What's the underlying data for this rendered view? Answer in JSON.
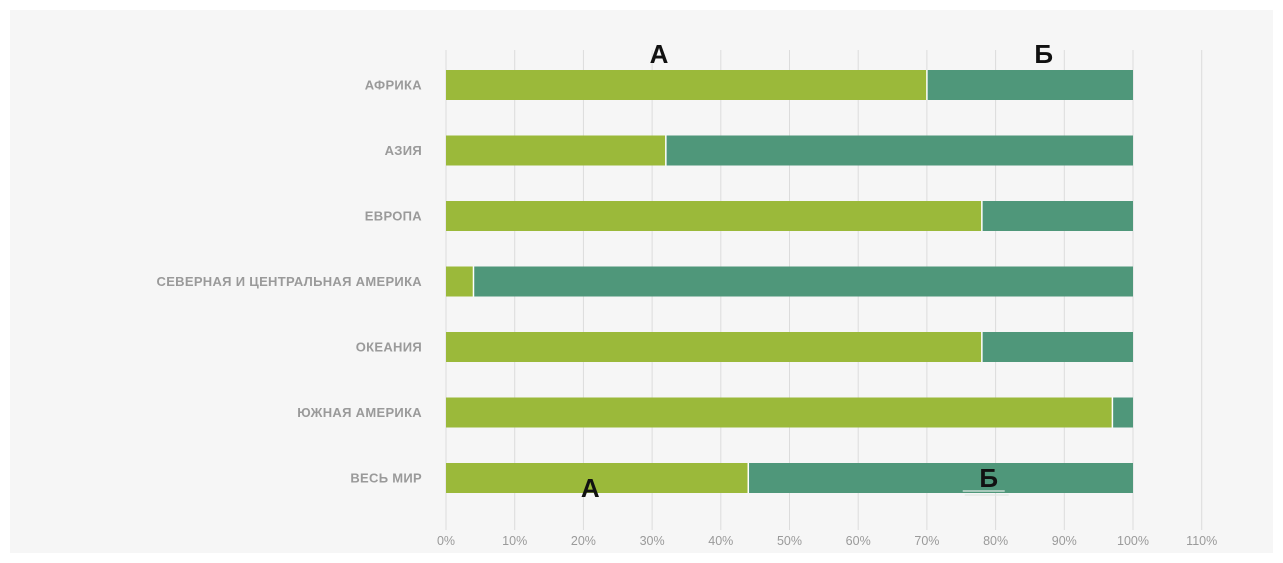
{
  "colors": {
    "background": "#f6f6f6",
    "grid": "#dcdcdc",
    "series_a": "#9bb93a",
    "series_b": "#4f977a",
    "label": "#9a9a9a",
    "annotation": "#111111"
  },
  "chart_data": {
    "type": "bar",
    "orientation": "horizontal",
    "stacked": true,
    "title": "",
    "xlabel": "",
    "ylabel": "",
    "xlim": [
      0,
      110
    ],
    "grid": true,
    "legend": "none",
    "categories": [
      "АФРИКА",
      "АЗИЯ",
      "ЕВРОПА",
      "СЕВЕРНАЯ И ЦЕНТРАЛЬНАЯ АМЕРИКА",
      "ОКЕАНИЯ",
      "ЮЖНАЯ АМЕРИКА",
      "ВЕСЬ МИР"
    ],
    "series": [
      {
        "values": [
          70,
          32,
          78,
          4,
          78,
          97,
          44
        ]
      },
      {
        "values": [
          30,
          68,
          22,
          96,
          22,
          3,
          56
        ]
      }
    ],
    "x_ticks": [
      {
        "value": 0,
        "label": "0%"
      },
      {
        "value": 10,
        "label": "10%"
      },
      {
        "value": 20,
        "label": "20%"
      },
      {
        "value": 30,
        "label": "30%"
      },
      {
        "value": 40,
        "label": "40%"
      },
      {
        "value": 50,
        "label": "50%"
      },
      {
        "value": 60,
        "label": "60%"
      },
      {
        "value": 70,
        "label": "70%"
      },
      {
        "value": 80,
        "label": "80%"
      },
      {
        "value": 90,
        "label": "90%"
      },
      {
        "value": 100,
        "label": "100%"
      },
      {
        "value": 110,
        "label": "110%"
      }
    ],
    "annotations": [
      {
        "text": "А",
        "row": 0,
        "at_value": 31,
        "placement": "above"
      },
      {
        "text": "Б",
        "row": 0,
        "at_value": 87,
        "placement": "above"
      },
      {
        "text": "А",
        "row": 6,
        "at_value": 21,
        "placement": "below"
      },
      {
        "text": "Б",
        "row": 6,
        "at_value": 79,
        "placement": "on"
      }
    ]
  }
}
